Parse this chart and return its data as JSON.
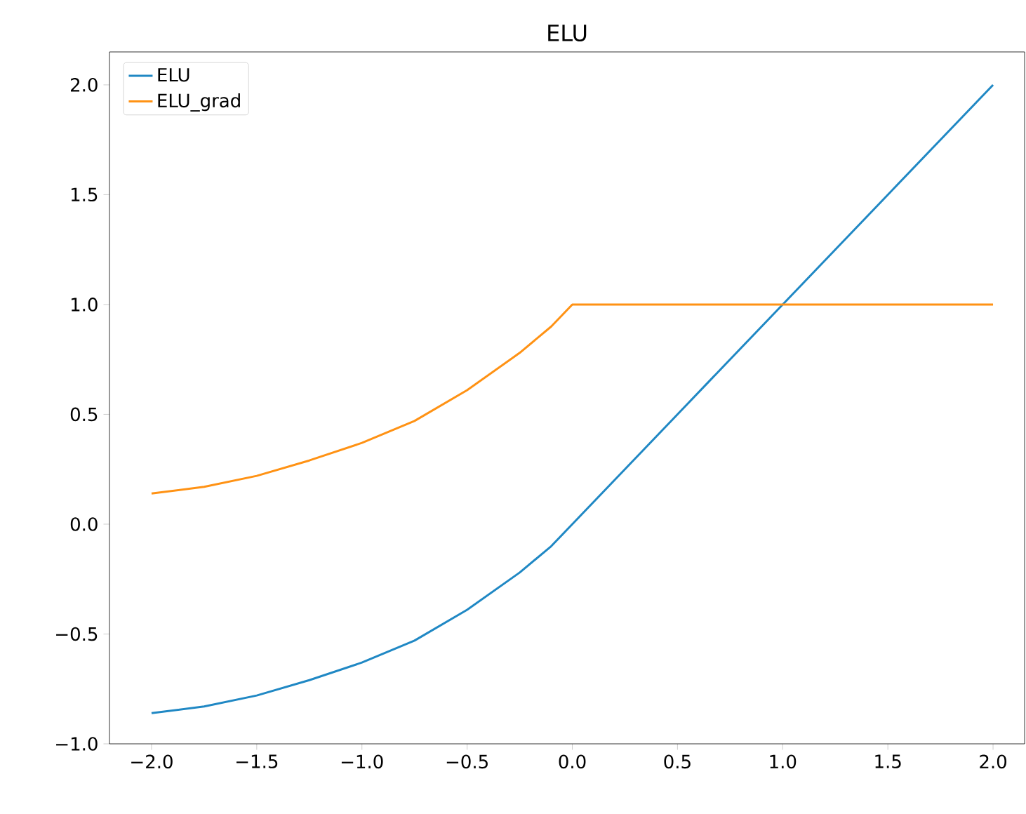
{
  "chart_data": {
    "type": "line",
    "title": "ELU",
    "x": [
      -2,
      -1.75,
      -1.5,
      -1.25,
      -1,
      -0.75,
      -0.5,
      -0.25,
      -0.1,
      0,
      0.5,
      1,
      1.5,
      2
    ],
    "series": [
      {
        "name": "ELU",
        "color": "#2088c4",
        "values": [
          -0.86,
          -0.83,
          -0.78,
          -0.71,
          -0.63,
          -0.53,
          -0.39,
          -0.22,
          -0.1,
          0,
          0.5,
          1,
          1.5,
          2
        ]
      },
      {
        "name": "ELU_grad",
        "color": "#ff9214",
        "values": [
          0.14,
          0.17,
          0.22,
          0.29,
          0.37,
          0.47,
          0.61,
          0.78,
          0.9,
          1,
          1,
          1,
          1,
          1
        ]
      }
    ],
    "xlim": [
      -2.2,
      2.15
    ],
    "ylim": [
      -1.0,
      2.15
    ],
    "xticks": [
      {
        "value": -2,
        "label": "−2.0"
      },
      {
        "value": -1.5,
        "label": "−1.5"
      },
      {
        "value": -1,
        "label": "−1.0"
      },
      {
        "value": -0.5,
        "label": "−0.5"
      },
      {
        "value": 0,
        "label": "0.0"
      },
      {
        "value": 0.5,
        "label": "0.5"
      },
      {
        "value": 1,
        "label": "1.0"
      },
      {
        "value": 1.5,
        "label": "1.5"
      },
      {
        "value": 2,
        "label": "2.0"
      }
    ],
    "yticks": [
      {
        "value": -1,
        "label": "−1.0"
      },
      {
        "value": -0.5,
        "label": "−0.5"
      },
      {
        "value": 0,
        "label": "0.0"
      },
      {
        "value": 0.5,
        "label": "0.5"
      },
      {
        "value": 1,
        "label": "1.0"
      },
      {
        "value": 1.5,
        "label": "1.5"
      },
      {
        "value": 2,
        "label": "2.0"
      }
    ],
    "legend": "top left"
  }
}
